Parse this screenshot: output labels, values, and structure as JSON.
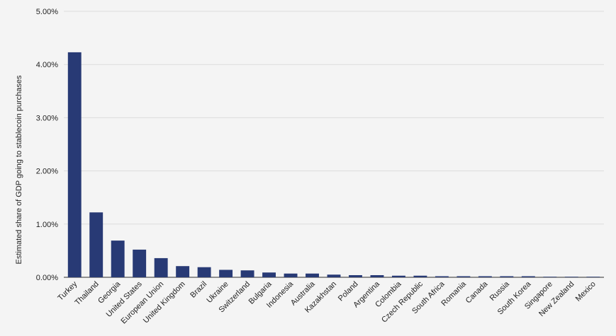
{
  "chart_data": {
    "type": "bar",
    "title": "",
    "xlabel": "",
    "ylabel": "Estimated share of GDP going to stablecoin purchases",
    "ylim": [
      0,
      5
    ],
    "y_unit": "%",
    "y_ticks": [
      "0.00%",
      "1.00%",
      "2.00%",
      "3.00%",
      "4.00%",
      "5.00%"
    ],
    "grid": true,
    "legend": "none",
    "bar_color": "#283a75",
    "categories": [
      "Turkey",
      "Thailand",
      "Georgia",
      "United States",
      "European Union",
      "United Kingdom",
      "Brazil",
      "Ukraine",
      "Switzerland",
      "Bulgaria",
      "Indonesia",
      "Australia",
      "Kazakhstan",
      "Poland",
      "Argentina",
      "Colombia",
      "Czech Republic",
      "South Africa",
      "Romania",
      "Canada",
      "Russia",
      "South Korea",
      "Singapore",
      "New Zealand",
      "Mexico"
    ],
    "values": [
      4.23,
      1.22,
      0.69,
      0.52,
      0.36,
      0.21,
      0.19,
      0.14,
      0.13,
      0.09,
      0.07,
      0.07,
      0.05,
      0.04,
      0.04,
      0.03,
      0.03,
      0.02,
      0.02,
      0.02,
      0.02,
      0.02,
      0.01,
      0.01,
      0.01
    ]
  }
}
